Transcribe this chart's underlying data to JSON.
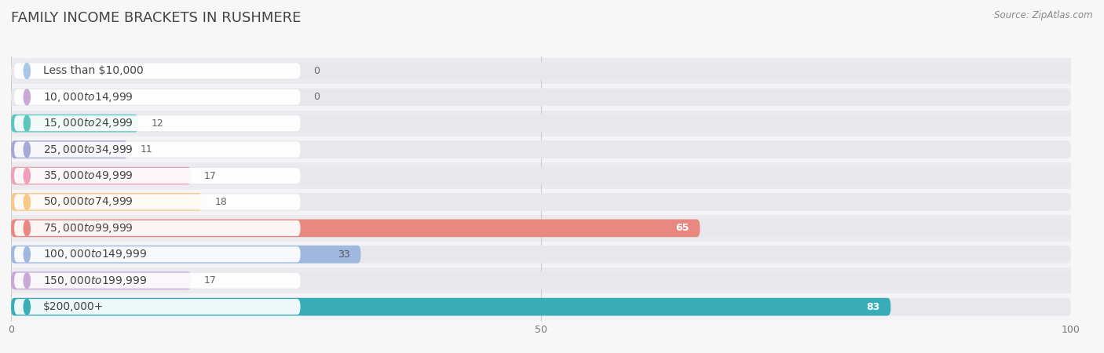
{
  "title": "FAMILY INCOME BRACKETS IN RUSHMERE",
  "source": "Source: ZipAtlas.com",
  "categories": [
    "Less than $10,000",
    "$10,000 to $14,999",
    "$15,000 to $24,999",
    "$25,000 to $34,999",
    "$35,000 to $49,999",
    "$50,000 to $74,999",
    "$75,000 to $99,999",
    "$100,000 to $149,999",
    "$150,000 to $199,999",
    "$200,000+"
  ],
  "values": [
    0,
    0,
    12,
    11,
    17,
    18,
    65,
    33,
    17,
    83
  ],
  "bar_colors": [
    "#a8c8e8",
    "#c8a8d8",
    "#5ec4bc",
    "#a8a8d8",
    "#f0a0b8",
    "#f8c888",
    "#e88880",
    "#a0b8e0",
    "#c8a8d8",
    "#38adb8"
  ],
  "label_colors": [
    "#555555",
    "#555555",
    "#555555",
    "#555555",
    "#555555",
    "#555555",
    "#ffffff",
    "#555555",
    "#555555",
    "#ffffff"
  ],
  "xlim": [
    0,
    100
  ],
  "xticks": [
    0,
    50,
    100
  ],
  "background_color": "#f7f7f7",
  "bar_bg_color": "#e8e8ec",
  "row_bg_color": "#f0f0f3",
  "title_fontsize": 13,
  "label_fontsize": 10,
  "value_fontsize": 9
}
